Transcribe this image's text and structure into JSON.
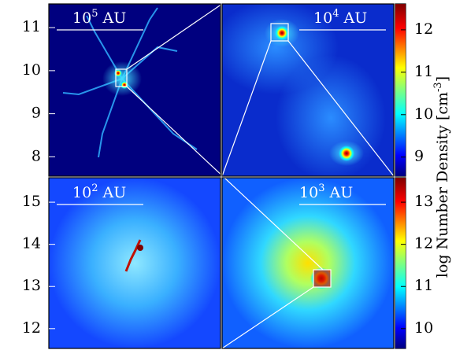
{
  "panels": [
    {
      "scale_base": "10",
      "scale_exp": "5",
      "scale_unit": "AU"
    },
    {
      "scale_base": "10",
      "scale_exp": "4",
      "scale_unit": "AU"
    },
    {
      "scale_base": "10",
      "scale_exp": "2",
      "scale_unit": "AU"
    },
    {
      "scale_base": "10",
      "scale_exp": "3",
      "scale_unit": "AU"
    }
  ],
  "left_axes": [
    {
      "ylim": [
        7.55,
        11.55
      ],
      "yticks": [
        8,
        9,
        10,
        11
      ]
    },
    {
      "ylim": [
        11.53,
        15.58
      ],
      "yticks": [
        12,
        13,
        14,
        15
      ]
    }
  ],
  "colorbars": [
    {
      "ylim": [
        8.55,
        12.61
      ],
      "yticks": [
        9,
        10,
        11,
        12
      ]
    },
    {
      "ylim": [
        9.53,
        13.58
      ],
      "yticks": [
        10,
        11,
        12,
        13
      ]
    }
  ],
  "colorbar_label": {
    "text": "log Number Density [cm",
    "exp": "-3",
    "close": "]"
  }
}
